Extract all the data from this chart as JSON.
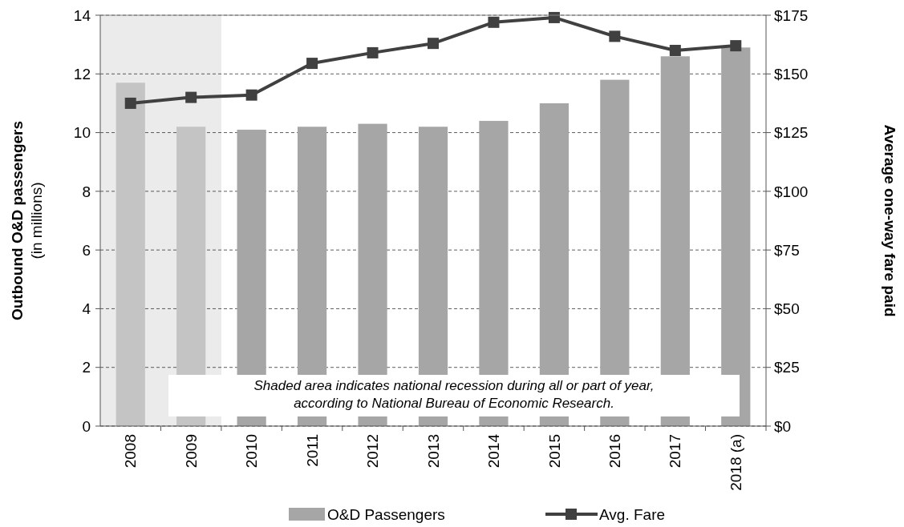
{
  "chart_data": {
    "type": "bar",
    "ylabel": "Outbound O&D passengers\n(in millions)",
    "y2label": "Average one-way fare paid",
    "categories": [
      "2008",
      "2009",
      "2010",
      "2011",
      "2012",
      "2013",
      "2014",
      "2015",
      "2016",
      "2017",
      "2018 (a)"
    ],
    "series": [
      {
        "name": "O&D Passengers",
        "type": "bar",
        "color": "#a6a6a6",
        "colors": [
          "#c4c4c4",
          "#c4c4c4",
          "#a6a6a6",
          "#a6a6a6",
          "#a6a6a6",
          "#a6a6a6",
          "#a6a6a6",
          "#a6a6a6",
          "#a6a6a6",
          "#a6a6a6",
          "#a6a6a6"
        ],
        "values": [
          11.7,
          10.2,
          10.1,
          10.2,
          10.3,
          10.2,
          10.4,
          11.0,
          11.8,
          12.6,
          12.9
        ]
      },
      {
        "name": "Avg. Fare",
        "type": "line",
        "axis": "y2",
        "color": "#404040",
        "values": [
          137.5,
          140,
          141,
          154.5,
          159,
          163,
          172,
          174,
          166,
          160,
          162
        ]
      }
    ],
    "ylim": [
      0,
      14
    ],
    "yticks": [
      0,
      2,
      4,
      6,
      8,
      10,
      12,
      14
    ],
    "y2lim": [
      0,
      175
    ],
    "y2ticks": [
      {
        "value": 0,
        "label": "$0"
      },
      {
        "value": 25,
        "label": "$25"
      },
      {
        "value": 50,
        "label": "$50"
      },
      {
        "value": 75,
        "label": "$75"
      },
      {
        "value": 100,
        "label": "$100"
      },
      {
        "value": 125,
        "label": "$125"
      },
      {
        "value": 150,
        "label": "$150"
      },
      {
        "value": 175,
        "label": "$175"
      }
    ],
    "bands": [
      {
        "axis": "x",
        "from": "2008",
        "to": "2009",
        "color": "#ebebeb"
      }
    ],
    "annotations": [
      "Shaded area indicates national recession during all or part of year,\naccording to National Bureau of Economic Research."
    ],
    "grid": "y",
    "legend": "bottom",
    "marker": "square",
    "line_style": "solid"
  }
}
